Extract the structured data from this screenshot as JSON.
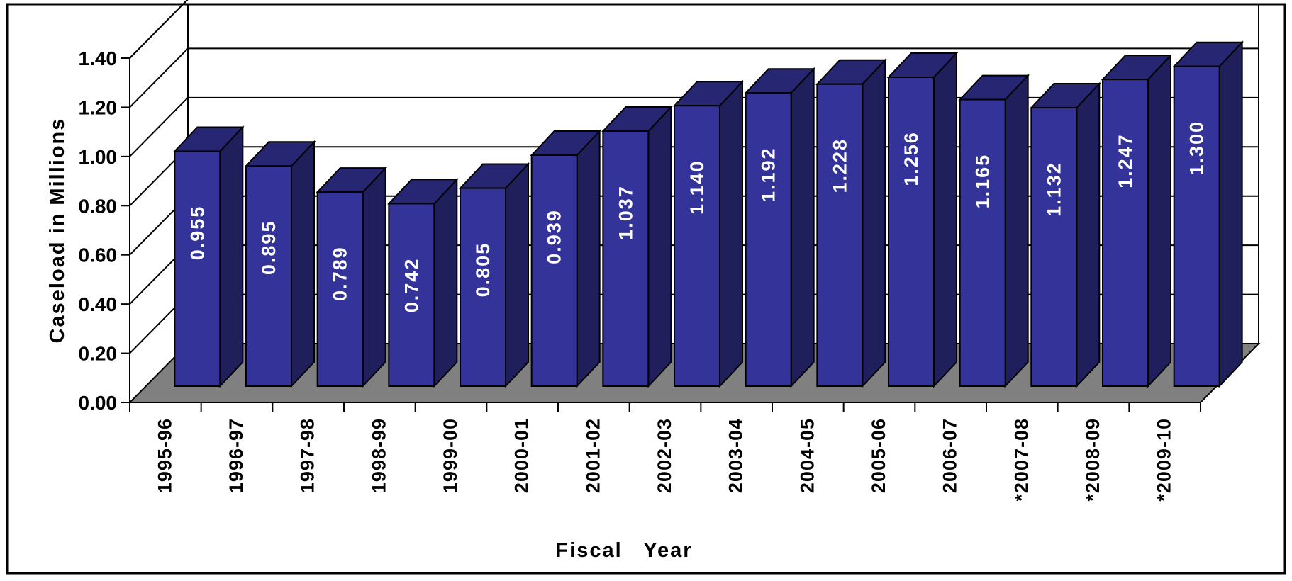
{
  "colors": {
    "bar_front": "#33339a",
    "bar_top": "#262673",
    "bar_side": "#1f1f5c",
    "floor": "#808080",
    "grid": "#000000",
    "value_text": "#ffffff"
  },
  "chart_data": {
    "type": "bar",
    "title": "",
    "xlabel": "Fiscal   Year",
    "ylabel": "Caseload in Millions",
    "ylim": [
      0,
      1.4
    ],
    "yticks": [
      "0.00",
      "0.20",
      "0.40",
      "0.60",
      "0.80",
      "1.00",
      "1.20",
      "1.40"
    ],
    "grid": true,
    "legend": "none",
    "categories": [
      "1995-96",
      "1996-97",
      "1997-98",
      "1998-99",
      "1999-00",
      "2000-01",
      "2001-02",
      "2002-03",
      "2003-04",
      "2004-05",
      "2005-06",
      "2006-07",
      "*2007-08",
      "*2008-09",
      "*2009-10"
    ],
    "values": [
      0.955,
      0.895,
      0.789,
      0.742,
      0.805,
      0.939,
      1.037,
      1.14,
      1.192,
      1.228,
      1.256,
      1.165,
      1.132,
      1.247,
      1.3
    ],
    "data_labels": [
      "0.955",
      "0.895",
      "0.789",
      "0.742",
      "0.805",
      "0.939",
      "1.037",
      "1.140",
      "1.192",
      "1.228",
      "1.256",
      "1.165",
      "1.132",
      "1.247",
      "1.300"
    ]
  }
}
